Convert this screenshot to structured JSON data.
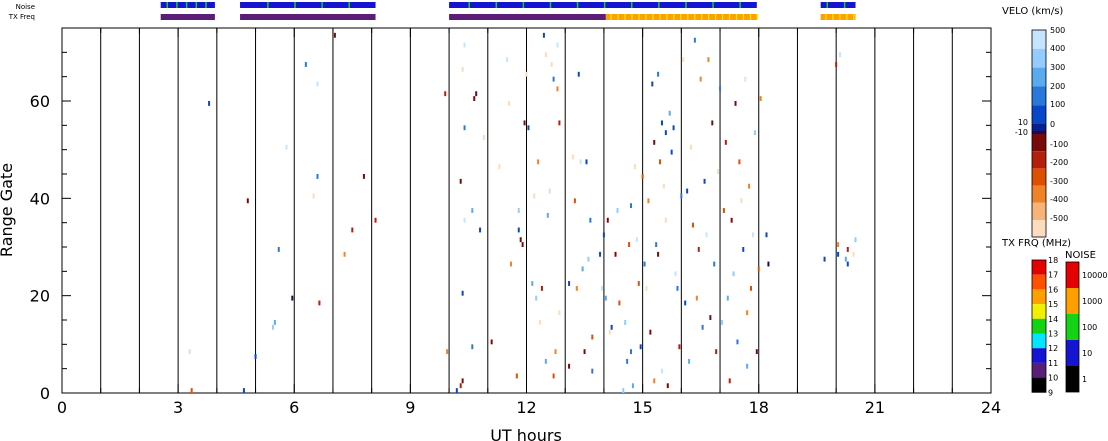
{
  "chart_data": {
    "type": "scatter",
    "title": "",
    "xlabel": "UT hours",
    "ylabel": "Range Gate",
    "xlim": [
      0,
      24
    ],
    "ylim": [
      0,
      75
    ],
    "x_ticks": [
      "0",
      "3",
      "6",
      "9",
      "12",
      "15",
      "18",
      "21",
      "24"
    ],
    "y_ticks": [
      "0",
      "20",
      "40",
      "60"
    ],
    "vertical_grid_hours": [
      1,
      2,
      3,
      4,
      5,
      6,
      7,
      8,
      9,
      10,
      11,
      12,
      13,
      14,
      15,
      16,
      17,
      18,
      19,
      20,
      21,
      22,
      23
    ],
    "strip_labels": {
      "noise": "Noise",
      "txfreq": "TX Freq"
    },
    "noise_strip": [
      {
        "start": 2.55,
        "end": 3.95,
        "level": "10"
      },
      {
        "start": 4.6,
        "end": 8.1,
        "level": "10"
      },
      {
        "start": 10.0,
        "end": 17.95,
        "level": "10"
      },
      {
        "start": 19.6,
        "end": 20.5,
        "level": "10"
      }
    ],
    "noise_strip_accents": [
      2.7,
      2.95,
      3.2,
      3.45,
      3.7,
      5.3,
      6.0,
      6.7,
      7.4,
      10.5,
      11.2,
      11.9,
      12.6,
      13.3,
      14.0,
      14.7,
      15.4,
      16.1,
      16.8,
      17.5,
      19.75,
      20.2
    ],
    "txfreq_strip": [
      {
        "start": 2.55,
        "end": 3.95,
        "freq_mhz": 10
      },
      {
        "start": 4.6,
        "end": 8.1,
        "freq_mhz": 10
      },
      {
        "start": 10.0,
        "end": 14.05,
        "freq_mhz": 10
      },
      {
        "start": 14.05,
        "end": 17.95,
        "freq_mhz": 15
      },
      {
        "start": 19.6,
        "end": 20.5,
        "freq_mhz": 15
      }
    ],
    "velo_scale": {
      "title": "VELO (km/s)",
      "labels": [
        "500",
        "400",
        "300",
        "200",
        "100",
        "0",
        "10",
        "-10",
        "-100",
        "-200",
        "-300",
        "-400",
        "-500"
      ],
      "colors": [
        "#c6e4ff",
        "#94ccff",
        "#5aaaf0",
        "#2878dc",
        "#0a46c8",
        "#0a1e8c",
        "#1e0a50",
        "#780a0a",
        "#b41e0a",
        "#dc5000",
        "#f08228",
        "#f8b478",
        "#fcdcbe"
      ]
    },
    "txfrq_scale": {
      "title": "TX FRQ (MHz)",
      "labels": [
        "9",
        "10",
        "11",
        "12",
        "13",
        "14",
        "15",
        "16",
        "17",
        "18"
      ],
      "colors": [
        "#000000",
        "#5a1e78",
        "#1414d2",
        "#00e6ff",
        "#14d214",
        "#f0f000",
        "#ffa000",
        "#ff5000",
        "#e60000"
      ]
    },
    "noise_scale": {
      "title": "NOISE",
      "labels": [
        "1",
        "10",
        "100",
        "1000",
        "10000"
      ],
      "colors": [
        "#000000",
        "#1414d2",
        "#14d214",
        "#ffa000",
        "#e60000"
      ]
    },
    "points": [
      {
        "x": 3.35,
        "y": 0.5,
        "v": -300
      },
      {
        "x": 3.3,
        "y": 8.5,
        "v": 500
      },
      {
        "x": 3.8,
        "y": 59.5,
        "v": 100
      },
      {
        "x": 4.7,
        "y": 0.5,
        "v": 100
      },
      {
        "x": 4.8,
        "y": 39.5,
        "v": -100
      },
      {
        "x": 5.0,
        "y": 7.5,
        "v": 100
      },
      {
        "x": 5.5,
        "y": 14.5,
        "v": 300
      },
      {
        "x": 5.45,
        "y": 13.5,
        "v": 400
      },
      {
        "x": 5.6,
        "y": 29.5,
        "v": 200
      },
      {
        "x": 5.8,
        "y": 50.5,
        "v": 500
      },
      {
        "x": 5.95,
        "y": 19.5,
        "v": 0
      },
      {
        "x": 6.3,
        "y": 67.5,
        "v": 200
      },
      {
        "x": 6.5,
        "y": 40.5,
        "v": -500
      },
      {
        "x": 6.6,
        "y": 44.5,
        "v": 200
      },
      {
        "x": 6.6,
        "y": 63.5,
        "v": 500
      },
      {
        "x": 6.65,
        "y": 18.5,
        "v": -200
      },
      {
        "x": 7.05,
        "y": 73.5,
        "v": -100
      },
      {
        "x": 7.3,
        "y": 28.5,
        "v": -400
      },
      {
        "x": 7.5,
        "y": 33.5,
        "v": -200
      },
      {
        "x": 7.8,
        "y": 44.5,
        "v": -100
      },
      {
        "x": 8.1,
        "y": 35.5,
        "v": -200
      },
      {
        "x": 9.9,
        "y": 61.5,
        "v": -200
      },
      {
        "x": 9.95,
        "y": 8.5,
        "v": -400
      },
      {
        "x": 10.2,
        "y": 0.5,
        "v": 100
      },
      {
        "x": 10.3,
        "y": 1.5,
        "v": -200
      },
      {
        "x": 10.35,
        "y": 2.5,
        "v": -100
      },
      {
        "x": 10.35,
        "y": 20.5,
        "v": 100
      },
      {
        "x": 10.3,
        "y": 43.5,
        "v": -100
      },
      {
        "x": 10.4,
        "y": 54.5,
        "v": 200
      },
      {
        "x": 10.4,
        "y": 35.5,
        "v": 500
      },
      {
        "x": 10.4,
        "y": 71.5,
        "v": 500
      },
      {
        "x": 10.35,
        "y": 66.5,
        "v": -500
      },
      {
        "x": 10.6,
        "y": 37.5,
        "v": 300
      },
      {
        "x": 10.7,
        "y": 61.5,
        "v": -100
      },
      {
        "x": 10.65,
        "y": 60.5,
        "v": -100
      },
      {
        "x": 10.6,
        "y": 9.5,
        "v": 200
      },
      {
        "x": 10.8,
        "y": 33.5,
        "v": 100
      },
      {
        "x": 10.9,
        "y": 52.5,
        "v": -500
      },
      {
        "x": 11.1,
        "y": 10.5,
        "v": -100
      },
      {
        "x": 11.3,
        "y": 46.5,
        "v": -500
      },
      {
        "x": 11.5,
        "y": 68.5,
        "v": 500
      },
      {
        "x": 11.55,
        "y": 59.5,
        "v": -500
      },
      {
        "x": 11.6,
        "y": 26.5,
        "v": -400
      },
      {
        "x": 11.75,
        "y": 3.5,
        "v": -300
      },
      {
        "x": 11.8,
        "y": 37.5,
        "v": 400
      },
      {
        "x": 11.8,
        "y": 33.5,
        "v": 100
      },
      {
        "x": 11.85,
        "y": 31.5,
        "v": -100
      },
      {
        "x": 11.9,
        "y": 30.5,
        "v": -100
      },
      {
        "x": 11.95,
        "y": 55.5,
        "v": -100
      },
      {
        "x": 12.0,
        "y": 65.5,
        "v": -500
      },
      {
        "x": 12.05,
        "y": 54.5,
        "v": 100
      },
      {
        "x": 12.15,
        "y": 22.5,
        "v": 300
      },
      {
        "x": 12.2,
        "y": 40.5,
        "v": -500
      },
      {
        "x": 12.25,
        "y": 19.5,
        "v": 400
      },
      {
        "x": 12.3,
        "y": 47.5,
        "v": -400
      },
      {
        "x": 12.35,
        "y": 14.5,
        "v": -500
      },
      {
        "x": 12.4,
        "y": 21.5,
        "v": -200
      },
      {
        "x": 12.45,
        "y": 73.5,
        "v": 100
      },
      {
        "x": 12.5,
        "y": 69.5,
        "v": -500
      },
      {
        "x": 12.5,
        "y": 6.5,
        "v": 300
      },
      {
        "x": 12.55,
        "y": 36.5,
        "v": 300
      },
      {
        "x": 12.6,
        "y": 41.5,
        "v": 500
      },
      {
        "x": 12.65,
        "y": 67.5,
        "v": -500
      },
      {
        "x": 12.7,
        "y": 64.5,
        "v": 200
      },
      {
        "x": 12.7,
        "y": 3.5,
        "v": -300
      },
      {
        "x": 12.75,
        "y": 8.5,
        "v": -400
      },
      {
        "x": 12.8,
        "y": 71.5,
        "v": 500
      },
      {
        "x": 12.8,
        "y": 62.5,
        "v": -400
      },
      {
        "x": 12.85,
        "y": 55.5,
        "v": -200
      },
      {
        "x": 12.85,
        "y": 16.5,
        "v": -500
      },
      {
        "x": 13.1,
        "y": 22.5,
        "v": 100
      },
      {
        "x": 13.1,
        "y": 5.5,
        "v": -100
      },
      {
        "x": 13.2,
        "y": 48.5,
        "v": -500
      },
      {
        "x": 13.25,
        "y": 39.5,
        "v": -300
      },
      {
        "x": 13.3,
        "y": 21.5,
        "v": -400
      },
      {
        "x": 13.35,
        "y": 65.5,
        "v": 100
      },
      {
        "x": 13.4,
        "y": 47.5,
        "v": 500
      },
      {
        "x": 13.45,
        "y": 25.5,
        "v": 300
      },
      {
        "x": 13.5,
        "y": 8.5,
        "v": -100
      },
      {
        "x": 13.55,
        "y": 47.5,
        "v": 100
      },
      {
        "x": 13.6,
        "y": 27.5,
        "v": 400
      },
      {
        "x": 13.65,
        "y": 35.5,
        "v": 200
      },
      {
        "x": 13.7,
        "y": 11.5,
        "v": -300
      },
      {
        "x": 13.7,
        "y": 4.5,
        "v": 200
      },
      {
        "x": 13.9,
        "y": 28.5,
        "v": 100
      },
      {
        "x": 13.95,
        "y": 21.5,
        "v": 500
      },
      {
        "x": 14.0,
        "y": 32.5,
        "v": 100
      },
      {
        "x": 14.05,
        "y": 19.5,
        "v": 300
      },
      {
        "x": 14.1,
        "y": 35.5,
        "v": -100
      },
      {
        "x": 14.15,
        "y": 12.5,
        "v": -500
      },
      {
        "x": 14.2,
        "y": 13.5,
        "v": 100
      },
      {
        "x": 14.3,
        "y": 28.5,
        "v": -100
      },
      {
        "x": 14.35,
        "y": 37.5,
        "v": 400
      },
      {
        "x": 14.4,
        "y": 18.5,
        "v": -300
      },
      {
        "x": 14.5,
        "y": 0.5,
        "v": 400
      },
      {
        "x": 14.55,
        "y": 14.5,
        "v": 400
      },
      {
        "x": 14.6,
        "y": 6.5,
        "v": 200
      },
      {
        "x": 14.65,
        "y": 30.5,
        "v": -300
      },
      {
        "x": 14.7,
        "y": 38.5,
        "v": 200
      },
      {
        "x": 14.7,
        "y": 8.5,
        "v": 200
      },
      {
        "x": 14.75,
        "y": 1.5,
        "v": 300
      },
      {
        "x": 14.8,
        "y": 46.5,
        "v": -500
      },
      {
        "x": 14.85,
        "y": 31.5,
        "v": 500
      },
      {
        "x": 14.9,
        "y": 22.5,
        "v": -300
      },
      {
        "x": 14.95,
        "y": 9.5,
        "v": 100
      },
      {
        "x": 15.0,
        "y": 44.5,
        "v": -300
      },
      {
        "x": 15.05,
        "y": 26.5,
        "v": 200
      },
      {
        "x": 15.1,
        "y": 21.5,
        "v": -500
      },
      {
        "x": 15.15,
        "y": 39.5,
        "v": -400
      },
      {
        "x": 15.2,
        "y": 12.5,
        "v": -100
      },
      {
        "x": 15.25,
        "y": 63.5,
        "v": 100
      },
      {
        "x": 15.3,
        "y": 2.5,
        "v": -400
      },
      {
        "x": 15.3,
        "y": 51.5,
        "v": -100
      },
      {
        "x": 15.35,
        "y": 30.5,
        "v": 200
      },
      {
        "x": 15.4,
        "y": 65.5,
        "v": 200
      },
      {
        "x": 15.4,
        "y": 28.5,
        "v": -100
      },
      {
        "x": 15.45,
        "y": 47.5,
        "v": -300
      },
      {
        "x": 15.5,
        "y": 55.5,
        "v": 100
      },
      {
        "x": 15.5,
        "y": 4.5,
        "v": 500
      },
      {
        "x": 15.55,
        "y": 42.5,
        "v": -500
      },
      {
        "x": 15.6,
        "y": 35.5,
        "v": -500
      },
      {
        "x": 15.6,
        "y": 53.5,
        "v": 100
      },
      {
        "x": 15.65,
        "y": 1.5,
        "v": -100
      },
      {
        "x": 15.7,
        "y": 57.5,
        "v": 300
      },
      {
        "x": 15.75,
        "y": 49.5,
        "v": 100
      },
      {
        "x": 15.8,
        "y": 54.5,
        "v": 100
      },
      {
        "x": 15.85,
        "y": 24.5,
        "v": 500
      },
      {
        "x": 15.9,
        "y": 21.5,
        "v": 200
      },
      {
        "x": 15.95,
        "y": 9.5,
        "v": -200
      },
      {
        "x": 16.0,
        "y": 40.5,
        "v": 200
      },
      {
        "x": 16.05,
        "y": 68.5,
        "v": -500
      },
      {
        "x": 16.1,
        "y": 18.5,
        "v": 100
      },
      {
        "x": 16.15,
        "y": 41.5,
        "v": 100
      },
      {
        "x": 16.2,
        "y": 6.5,
        "v": 300
      },
      {
        "x": 16.25,
        "y": 50.5,
        "v": -500
      },
      {
        "x": 16.3,
        "y": 34.5,
        "v": -300
      },
      {
        "x": 16.35,
        "y": 72.5,
        "v": 200
      },
      {
        "x": 16.4,
        "y": 19.5,
        "v": -400
      },
      {
        "x": 16.45,
        "y": 29.5,
        "v": -200
      },
      {
        "x": 16.5,
        "y": 64.5,
        "v": -400
      },
      {
        "x": 16.55,
        "y": 13.5,
        "v": 200
      },
      {
        "x": 16.6,
        "y": 43.5,
        "v": 100
      },
      {
        "x": 16.65,
        "y": 32.5,
        "v": 500
      },
      {
        "x": 16.7,
        "y": 68.5,
        "v": -400
      },
      {
        "x": 16.75,
        "y": 15.5,
        "v": -100
      },
      {
        "x": 16.8,
        "y": 55.5,
        "v": -100
      },
      {
        "x": 16.85,
        "y": 26.5,
        "v": 200
      },
      {
        "x": 16.9,
        "y": 8.5,
        "v": -200
      },
      {
        "x": 16.95,
        "y": 45.5,
        "v": -500
      },
      {
        "x": 17.0,
        "y": 62.5,
        "v": 200
      },
      {
        "x": 17.05,
        "y": 14.5,
        "v": 400
      },
      {
        "x": 17.1,
        "y": 37.5,
        "v": -300
      },
      {
        "x": 17.15,
        "y": 51.5,
        "v": -200
      },
      {
        "x": 17.2,
        "y": 19.5,
        "v": 300
      },
      {
        "x": 17.25,
        "y": 2.5,
        "v": -200
      },
      {
        "x": 17.3,
        "y": 35.5,
        "v": -100
      },
      {
        "x": 17.35,
        "y": 24.5,
        "v": 400
      },
      {
        "x": 17.4,
        "y": 59.5,
        "v": -100
      },
      {
        "x": 17.45,
        "y": 10.5,
        "v": 200
      },
      {
        "x": 17.5,
        "y": 47.5,
        "v": -300
      },
      {
        "x": 17.55,
        "y": 39.5,
        "v": -500
      },
      {
        "x": 17.6,
        "y": 29.5,
        "v": 100
      },
      {
        "x": 17.65,
        "y": 64.5,
        "v": -500
      },
      {
        "x": 17.7,
        "y": 16.5,
        "v": -400
      },
      {
        "x": 17.7,
        "y": 5.5,
        "v": 300
      },
      {
        "x": 17.75,
        "y": 42.5,
        "v": -400
      },
      {
        "x": 17.8,
        "y": 21.5,
        "v": -300
      },
      {
        "x": 17.85,
        "y": 32.5,
        "v": 500
      },
      {
        "x": 17.9,
        "y": 53.5,
        "v": 400
      },
      {
        "x": 17.95,
        "y": 8.5,
        "v": -100
      },
      {
        "x": 18.0,
        "y": 25.5,
        "v": -300
      },
      {
        "x": 18.05,
        "y": 60.5,
        "v": -400
      },
      {
        "x": 18.2,
        "y": 32.5,
        "v": 100
      },
      {
        "x": 18.25,
        "y": 26.5,
        "v": 0
      },
      {
        "x": 19.7,
        "y": 27.5,
        "v": 100
      },
      {
        "x": 20.0,
        "y": 67.5,
        "v": -200
      },
      {
        "x": 20.05,
        "y": 30.5,
        "v": -400
      },
      {
        "x": 20.05,
        "y": 28.5,
        "v": 100
      },
      {
        "x": 20.1,
        "y": 69.5,
        "v": 500
      },
      {
        "x": 20.25,
        "y": 27.5,
        "v": 300
      },
      {
        "x": 20.3,
        "y": 26.5,
        "v": 100
      },
      {
        "x": 20.3,
        "y": 29.5,
        "v": -200
      },
      {
        "x": 20.45,
        "y": 28.5,
        "v": -500
      },
      {
        "x": 20.5,
        "y": 31.5,
        "v": 400
      }
    ]
  }
}
